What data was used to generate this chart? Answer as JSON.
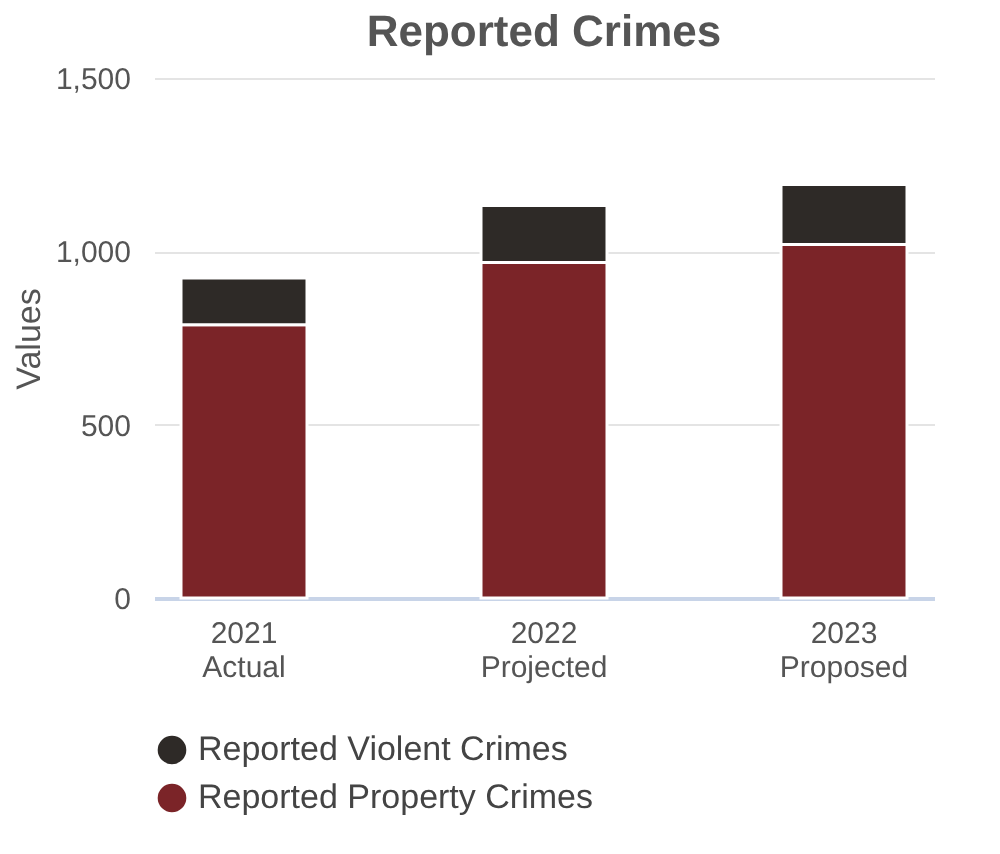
{
  "chart_data": {
    "type": "bar",
    "title": "Reported Crimes",
    "ylabel": "Values",
    "categories": [
      "2021 Actual",
      "2022 Projected",
      "2023 Proposed"
    ],
    "stacked": true,
    "series": [
      {
        "name": "Reported Property Crimes",
        "color": "#7b2428",
        "values": [
          788,
          968,
          1020
        ]
      },
      {
        "name": "Reported Violent Crimes",
        "color": "#2e2a27",
        "values": [
          135,
          164,
          173
        ]
      }
    ],
    "ylim": [
      0,
      1500
    ],
    "yticks": [
      0,
      500,
      {
        "value": 1000,
        "label": "1,000"
      },
      {
        "value": 1500,
        "label": "1,500"
      }
    ],
    "grid": "y",
    "legend": "bottom"
  }
}
